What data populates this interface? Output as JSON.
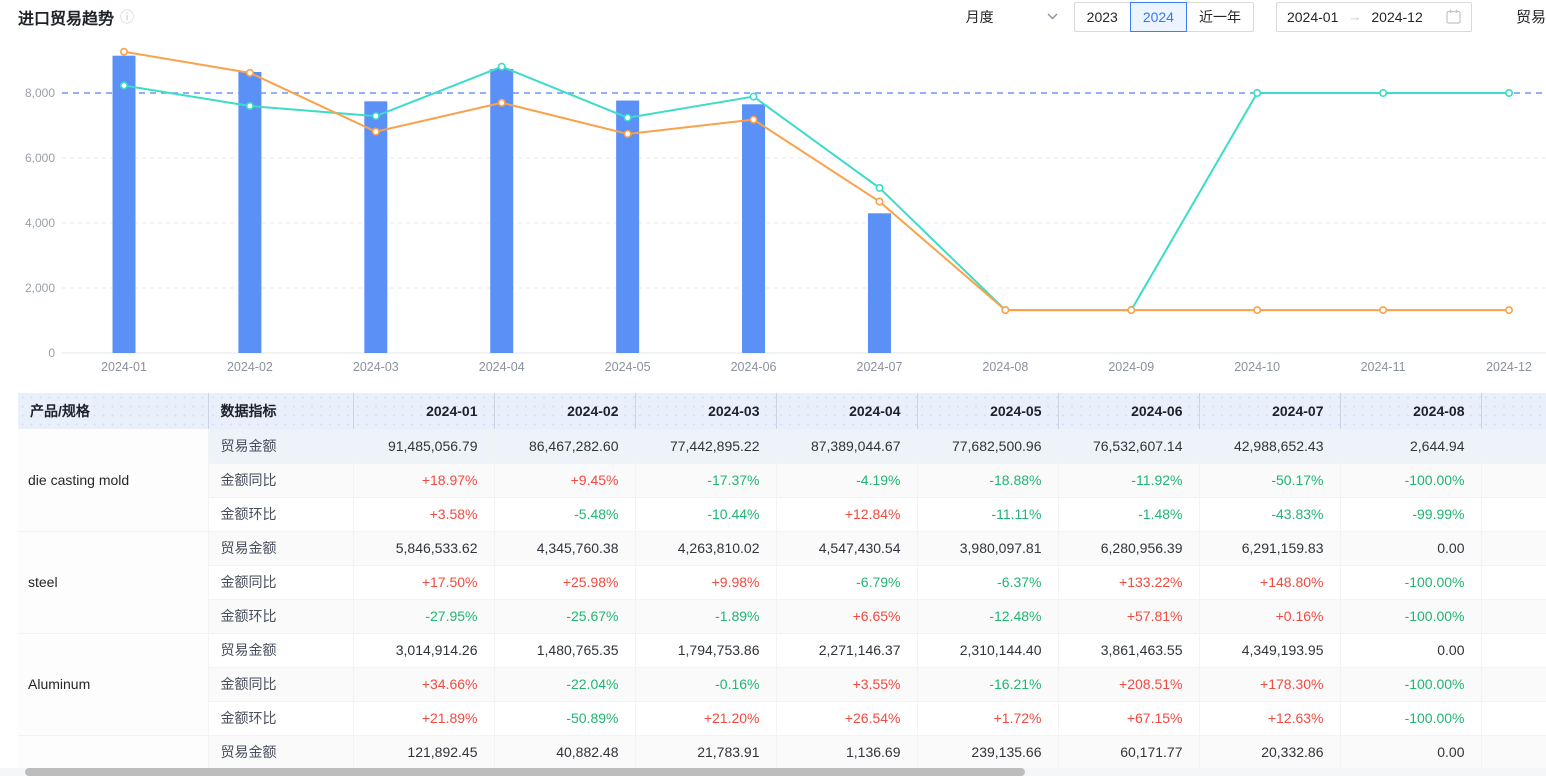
{
  "header": {
    "title": "进口贸易趋势",
    "period_select": "月度",
    "year_buttons": [
      "2023",
      "2024",
      "近一年"
    ],
    "selected_year": "2024",
    "date_from": "2024-01",
    "date_to": "2024-12",
    "trailing_label": "贸易"
  },
  "colors": {
    "bar_blue": "#5b90f7",
    "line_orange": "#faa14b",
    "line_teal": "#3bdcc8",
    "markline_blue": "#6e96f8",
    "up_red": "#f4493f",
    "down_green": "#21b573",
    "header_bg": "#e9effb",
    "accent_blue": "#3478f6"
  },
  "chart_data": {
    "type": "bar",
    "subtype": "bar+line combo, no legend, horizontal dashed grid",
    "categories": [
      "2024-01",
      "2024-02",
      "2024-03",
      "2024-04",
      "2024-05",
      "2024-06",
      "2024-07",
      "2024-08",
      "2024-09",
      "2024-10",
      "2024-11",
      "2024-12"
    ],
    "series": [
      {
        "name": "bar-blue",
        "type": "bar",
        "color": "#5b90f7",
        "values": [
          9148,
          8647,
          7744,
          8739,
          7768,
          7653,
          4299,
          0,
          0,
          0,
          0,
          0
        ]
      },
      {
        "name": "line-teal",
        "type": "line",
        "color": "#3bdcc8",
        "values": [
          8230,
          7600,
          7290,
          8810,
          7240,
          7890,
          5080,
          1320,
          1320,
          8000,
          8000,
          8000
        ]
      },
      {
        "name": "line-orange",
        "type": "line",
        "color": "#faa14b",
        "values": [
          9270,
          8620,
          6810,
          7700,
          6740,
          7180,
          4660,
          1320,
          1320,
          1320,
          1320,
          1320
        ]
      }
    ],
    "yticks": [
      0,
      2000,
      4000,
      6000,
      8000
    ],
    "ylim": [
      0,
      9780
    ],
    "markline": {
      "value": 8000,
      "color": "#6e96f8",
      "style": "dashed"
    },
    "grid": true,
    "legend_position": "none",
    "xlabel": "",
    "ylabel": ""
  },
  "table": {
    "col1_header": "产品/规格",
    "col2_header": "数据指标",
    "months": [
      "2024-01",
      "2024-02",
      "2024-03",
      "2024-04",
      "2024-05",
      "2024-06",
      "2024-07",
      "2024-08"
    ],
    "products": [
      {
        "name": "die casting mold",
        "rows": [
          {
            "label": "贸易金额",
            "values": [
              "91,485,056.79",
              "86,467,282.60",
              "77,442,895.22",
              "87,389,044.67",
              "77,682,500.96",
              "76,532,607.14",
              "42,988,652.43",
              "2,644.94"
            ]
          },
          {
            "label": "金额同比",
            "values": [
              "+18.97%",
              "+9.45%",
              "-17.37%",
              "-4.19%",
              "-18.88%",
              "-11.92%",
              "-50.17%",
              "-100.00%"
            ]
          },
          {
            "label": "金额环比",
            "values": [
              "+3.58%",
              "-5.48%",
              "-10.44%",
              "+12.84%",
              "-11.11%",
              "-1.48%",
              "-43.83%",
              "-99.99%"
            ]
          }
        ]
      },
      {
        "name": "steel",
        "rows": [
          {
            "label": "贸易金额",
            "values": [
              "5,846,533.62",
              "4,345,760.38",
              "4,263,810.02",
              "4,547,430.54",
              "3,980,097.81",
              "6,280,956.39",
              "6,291,159.83",
              "0.00"
            ]
          },
          {
            "label": "金额同比",
            "values": [
              "+17.50%",
              "+25.98%",
              "+9.98%",
              "-6.79%",
              "-6.37%",
              "+133.22%",
              "+148.80%",
              "-100.00%"
            ]
          },
          {
            "label": "金额环比",
            "values": [
              "-27.95%",
              "-25.67%",
              "-1.89%",
              "+6.65%",
              "-12.48%",
              "+57.81%",
              "+0.16%",
              "-100.00%"
            ]
          }
        ]
      },
      {
        "name": "Aluminum",
        "rows": [
          {
            "label": "贸易金额",
            "values": [
              "3,014,914.26",
              "1,480,765.35",
              "1,794,753.86",
              "2,271,146.37",
              "2,310,144.40",
              "3,861,463.55",
              "4,349,193.95",
              "0.00"
            ]
          },
          {
            "label": "金额同比",
            "values": [
              "+34.66%",
              "-22.04%",
              "-0.16%",
              "+3.55%",
              "-16.21%",
              "+208.51%",
              "+178.30%",
              "-100.00%"
            ]
          },
          {
            "label": "金额环比",
            "values": [
              "+21.89%",
              "-50.89%",
              "+21.20%",
              "+26.54%",
              "+1.72%",
              "+67.15%",
              "+12.63%",
              "-100.00%"
            ]
          }
        ]
      },
      {
        "name": "",
        "rows": [
          {
            "label": "贸易金额",
            "values": [
              "121,892.45",
              "40,882.48",
              "21,783.91",
              "1,136.69",
              "239,135.66",
              "60,171.77",
              "20,332.86",
              "0.00"
            ]
          }
        ]
      }
    ]
  }
}
